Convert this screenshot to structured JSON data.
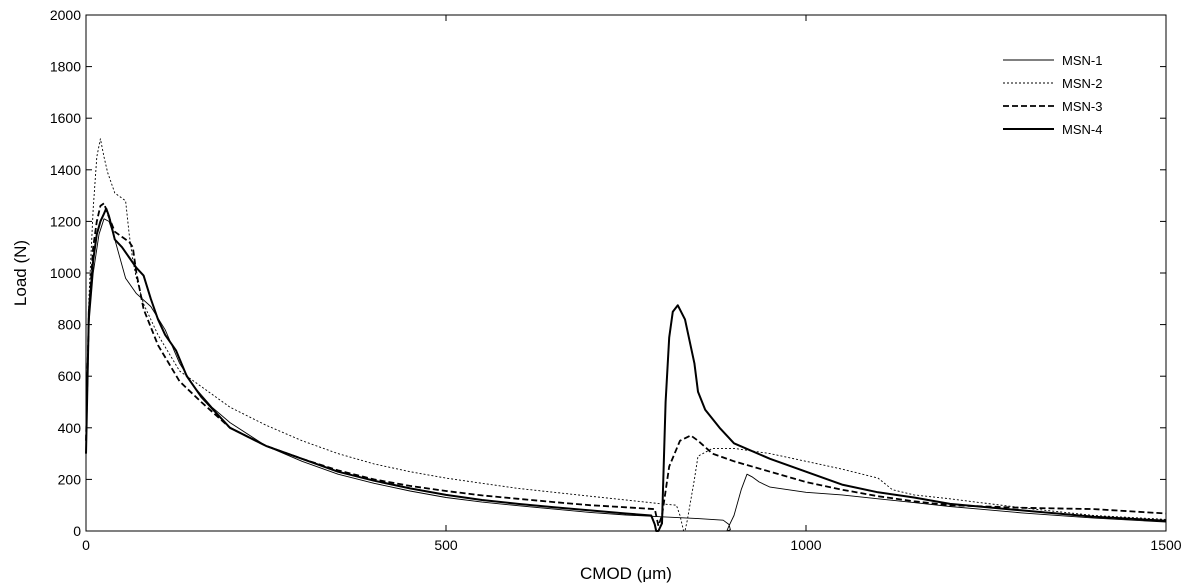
{
  "chart_data": {
    "type": "line",
    "title": "",
    "xlabel": "CMOD (μm)",
    "ylabel": "Load (N)",
    "xlim": [
      0,
      1500
    ],
    "ylim": [
      0,
      2000
    ],
    "xticks": [
      0,
      500,
      1000,
      1500
    ],
    "yticks": [
      0,
      200,
      400,
      600,
      800,
      1000,
      1200,
      1400,
      1600,
      1800,
      2000
    ],
    "grid": false,
    "legend": "top-right",
    "series": [
      {
        "name": "MSN-1",
        "style": "thin-solid",
        "x": [
          0,
          4,
          10,
          18,
          25,
          32,
          38,
          45,
          55,
          70,
          90,
          110,
          130,
          150,
          175,
          200,
          250,
          300,
          350,
          400,
          450,
          500,
          550,
          600,
          650,
          700,
          750,
          800,
          850,
          885,
          893,
          895,
          890,
          893,
          900,
          910,
          918,
          925,
          935,
          950,
          1000,
          1050,
          1100,
          1150,
          1200,
          1300,
          1400,
          1500
        ],
        "y": [
          400,
          800,
          1000,
          1150,
          1210,
          1200,
          1150,
          1080,
          980,
          920,
          870,
          780,
          650,
          560,
          480,
          420,
          330,
          270,
          220,
          185,
          155,
          130,
          112,
          98,
          85,
          72,
          62,
          55,
          48,
          42,
          25,
          5,
          0,
          20,
          60,
          160,
          220,
          210,
          190,
          170,
          150,
          140,
          125,
          110,
          95,
          70,
          50,
          35
        ]
      },
      {
        "name": "MSN-2",
        "style": "thin-dotted",
        "x": [
          0,
          4,
          10,
          15,
          20,
          25,
          30,
          35,
          40,
          50,
          55,
          60,
          65,
          70,
          80,
          100,
          130,
          160,
          200,
          250,
          300,
          350,
          400,
          450,
          500,
          550,
          600,
          650,
          700,
          750,
          800,
          820,
          825,
          830,
          832,
          835,
          845,
          850,
          870,
          900,
          950,
          1000,
          1050,
          1100,
          1120,
          1150,
          1200,
          1300,
          1400,
          1500
        ],
        "y": [
          400,
          900,
          1250,
          1450,
          1520,
          1450,
          1390,
          1350,
          1310,
          1290,
          1280,
          1150,
          1050,
          980,
          880,
          760,
          620,
          560,
          480,
          410,
          350,
          300,
          260,
          230,
          205,
          185,
          165,
          150,
          135,
          120,
          105,
          100,
          60,
          0,
          0,
          40,
          200,
          290,
          320,
          320,
          300,
          270,
          240,
          205,
          160,
          140,
          125,
          90,
          60,
          45
        ]
      },
      {
        "name": "MSN-3",
        "style": "dashed",
        "x": [
          0,
          4,
          10,
          15,
          20,
          25,
          30,
          40,
          50,
          60,
          65,
          70,
          80,
          100,
          130,
          160,
          200,
          250,
          300,
          350,
          400,
          450,
          500,
          550,
          600,
          650,
          700,
          750,
          790,
          795,
          800,
          810,
          825,
          840,
          850,
          870,
          900,
          950,
          1000,
          1050,
          1100,
          1150,
          1200,
          1300,
          1400,
          1500
        ],
        "y": [
          350,
          850,
          1100,
          1200,
          1260,
          1270,
          1230,
          1160,
          1140,
          1120,
          1100,
          1000,
          860,
          720,
          580,
          500,
          400,
          330,
          280,
          235,
          200,
          175,
          155,
          138,
          125,
          112,
          100,
          92,
          85,
          20,
          60,
          250,
          350,
          370,
          350,
          300,
          270,
          230,
          190,
          160,
          135,
          115,
          100,
          90,
          85,
          68
        ]
      },
      {
        "name": "MSN-4",
        "style": "thick-solid",
        "x": [
          0,
          4,
          10,
          15,
          20,
          25,
          28,
          32,
          40,
          50,
          60,
          70,
          80,
          90,
          100,
          110,
          125,
          140,
          160,
          200,
          250,
          300,
          350,
          400,
          450,
          500,
          550,
          600,
          650,
          700,
          750,
          785,
          790,
          792,
          795,
          800,
          805,
          810,
          815,
          822,
          832,
          845,
          850,
          860,
          880,
          900,
          950,
          1000,
          1050,
          1100,
          1150,
          1200,
          1300,
          1400,
          1500
        ],
        "y": [
          300,
          850,
          1050,
          1150,
          1200,
          1230,
          1250,
          1220,
          1130,
          1100,
          1060,
          1020,
          990,
          900,
          820,
          760,
          700,
          600,
          520,
          400,
          330,
          280,
          230,
          195,
          165,
          140,
          120,
          105,
          92,
          80,
          68,
          60,
          25,
          0,
          0,
          30,
          500,
          750,
          850,
          875,
          820,
          650,
          540,
          470,
          400,
          340,
          280,
          230,
          180,
          150,
          130,
          105,
          80,
          55,
          40
        ]
      }
    ]
  }
}
